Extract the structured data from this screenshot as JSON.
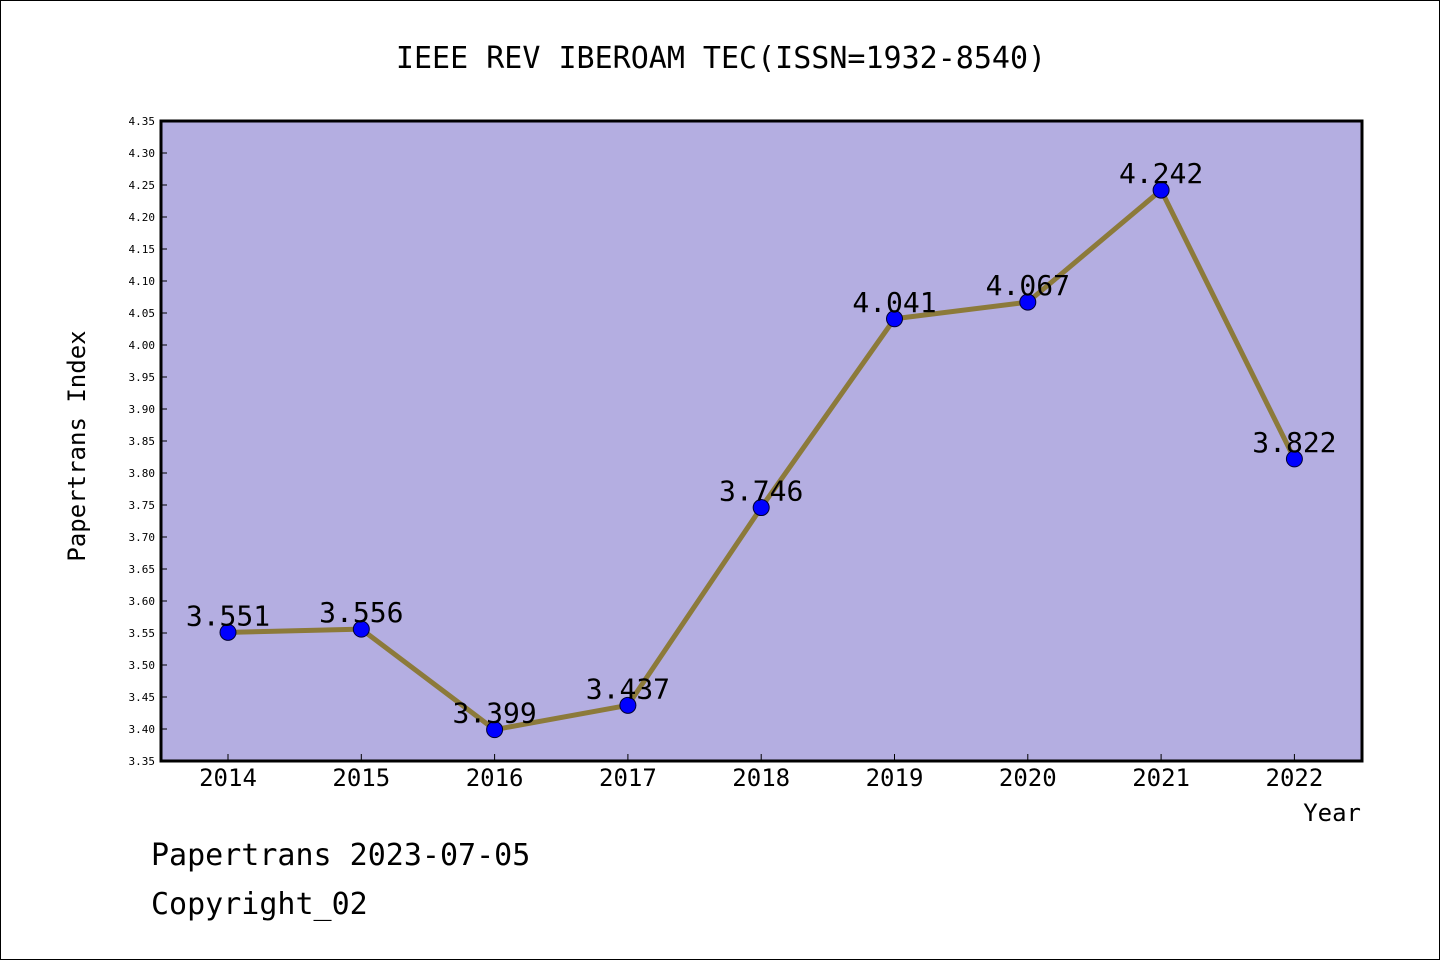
{
  "chart_data": {
    "type": "line",
    "title": "IEEE REV IBEROAM TEC(ISSN=1932-8540)",
    "xlabel": "Year",
    "ylabel": "Papertrans Index",
    "categories": [
      "2014",
      "2015",
      "2016",
      "2017",
      "2018",
      "2019",
      "2020",
      "2021",
      "2022"
    ],
    "series": [
      {
        "values": [
          3.551,
          3.556,
          3.399,
          3.437,
          3.746,
          4.041,
          4.067,
          4.242,
          3.822
        ],
        "labels": [
          "3.551",
          "3.556",
          "3.399",
          "3.437",
          "3.746",
          "4.041",
          "4.067",
          "4.242",
          "3.822"
        ]
      }
    ],
    "ylim": [
      3.35,
      4.35
    ],
    "yticks": [
      "3.35",
      "3.40",
      "3.45",
      "3.50",
      "3.55",
      "3.60",
      "3.65",
      "3.70",
      "3.75",
      "3.80",
      "3.85",
      "3.90",
      "3.95",
      "4.00",
      "4.05",
      "4.10",
      "4.15",
      "4.20",
      "4.25",
      "4.30",
      "4.35"
    ],
    "grid": false,
    "colors": {
      "plot_background": "#b4aee1",
      "line": "#8c7a3a",
      "marker": "#0000ff"
    }
  },
  "footer": {
    "date_text": "Papertrans 2023-07-05",
    "copyright_text": "Copyright_02"
  }
}
